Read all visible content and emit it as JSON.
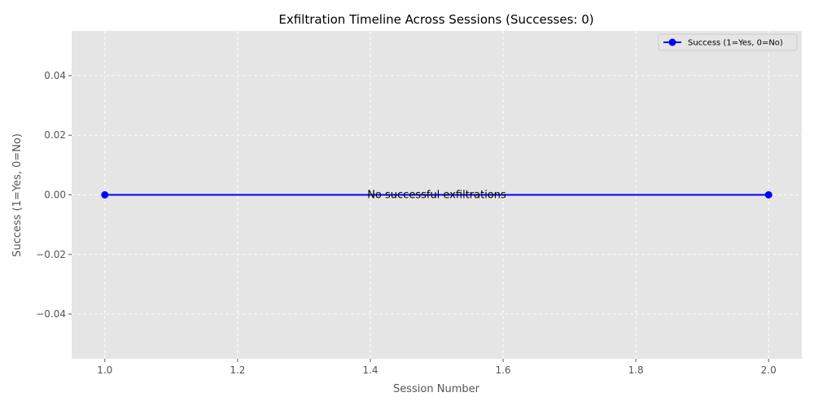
{
  "chart_data": {
    "type": "line",
    "title": "Exfiltration Timeline Across Sessions (Successes: 0)",
    "xlabel": "Session Number",
    "ylabel": "Success (1=Yes, 0=No)",
    "xlim": [
      0.95,
      2.05
    ],
    "ylim": [
      -0.055,
      0.055
    ],
    "xticks": [
      1.0,
      1.2,
      1.4,
      1.6,
      1.8,
      2.0
    ],
    "xtick_labels": [
      "1.0",
      "1.2",
      "1.4",
      "1.6",
      "1.8",
      "2.0"
    ],
    "yticks": [
      -0.04,
      -0.02,
      0.0,
      0.02,
      0.04
    ],
    "ytick_labels": [
      "−0.04",
      "−0.02",
      "0.00",
      "0.02",
      "0.04"
    ],
    "grid": true,
    "legend_position": "top-right",
    "series": [
      {
        "name": "Success (1=Yes, 0=No)",
        "x": [
          1,
          2
        ],
        "values": [
          0,
          0
        ],
        "color": "#0000ff",
        "marker": "circle"
      }
    ],
    "annotations": [
      {
        "text": "No successful exfiltrations",
        "x": 1.5,
        "y": 0
      }
    ],
    "colors": {
      "plot_background": "#e5e5e5",
      "grid": "#ffffff",
      "tick_text": "#555555",
      "label_text": "#555555",
      "title_text": "#000000"
    }
  }
}
